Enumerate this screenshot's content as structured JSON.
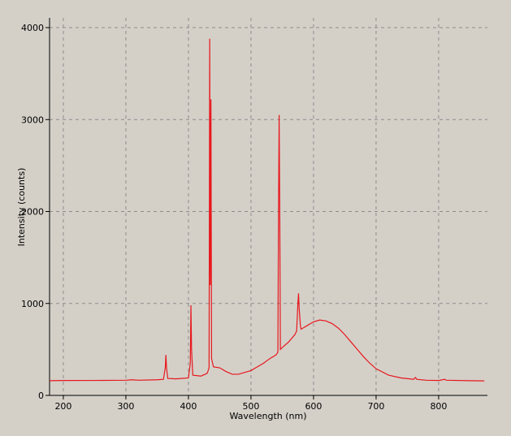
{
  "chart_data": {
    "type": "line",
    "x_label": "Wavelength (nm)",
    "y_label": "Intensity (counts)",
    "x": [
      178,
      200,
      250,
      300,
      310,
      320,
      350,
      360,
      363,
      364,
      365,
      367,
      380,
      400,
      403,
      404,
      405,
      407,
      420,
      430,
      433,
      434,
      435,
      436,
      437,
      440,
      450,
      460,
      470,
      480,
      490,
      500,
      510,
      520,
      530,
      540,
      543,
      544,
      545,
      546,
      547,
      550,
      560,
      570,
      573,
      575,
      576,
      577,
      579,
      580,
      590,
      600,
      610,
      620,
      630,
      640,
      650,
      660,
      670,
      680,
      690,
      700,
      720,
      740,
      760,
      763,
      765,
      780,
      800,
      810,
      812,
      850,
      873
    ],
    "series": [
      {
        "name": "Intensity",
        "color": "#e8171d",
        "values": [
          160,
          162,
          163,
          165,
          170,
          165,
          170,
          175,
          300,
          440,
          300,
          185,
          180,
          190,
          350,
          980,
          500,
          220,
          210,
          240,
          300,
          3880,
          1200,
          3220,
          400,
          310,
          300,
          260,
          230,
          230,
          250,
          270,
          310,
          350,
          400,
          440,
          470,
          2000,
          3050,
          2000,
          500,
          520,
          580,
          660,
          700,
          1000,
          1110,
          950,
          760,
          720,
          760,
          800,
          820,
          810,
          780,
          730,
          660,
          580,
          500,
          420,
          350,
          290,
          220,
          190,
          175,
          195,
          175,
          165,
          162,
          175,
          165,
          160,
          158
        ]
      }
    ],
    "xlim": [
      178,
      878
    ],
    "ylim": [
      0,
      4106
    ],
    "xticks": [
      200,
      300,
      400,
      500,
      600,
      700,
      800
    ],
    "yticks": [
      0,
      1000,
      2000,
      3000,
      4000
    ],
    "grid": true
  }
}
